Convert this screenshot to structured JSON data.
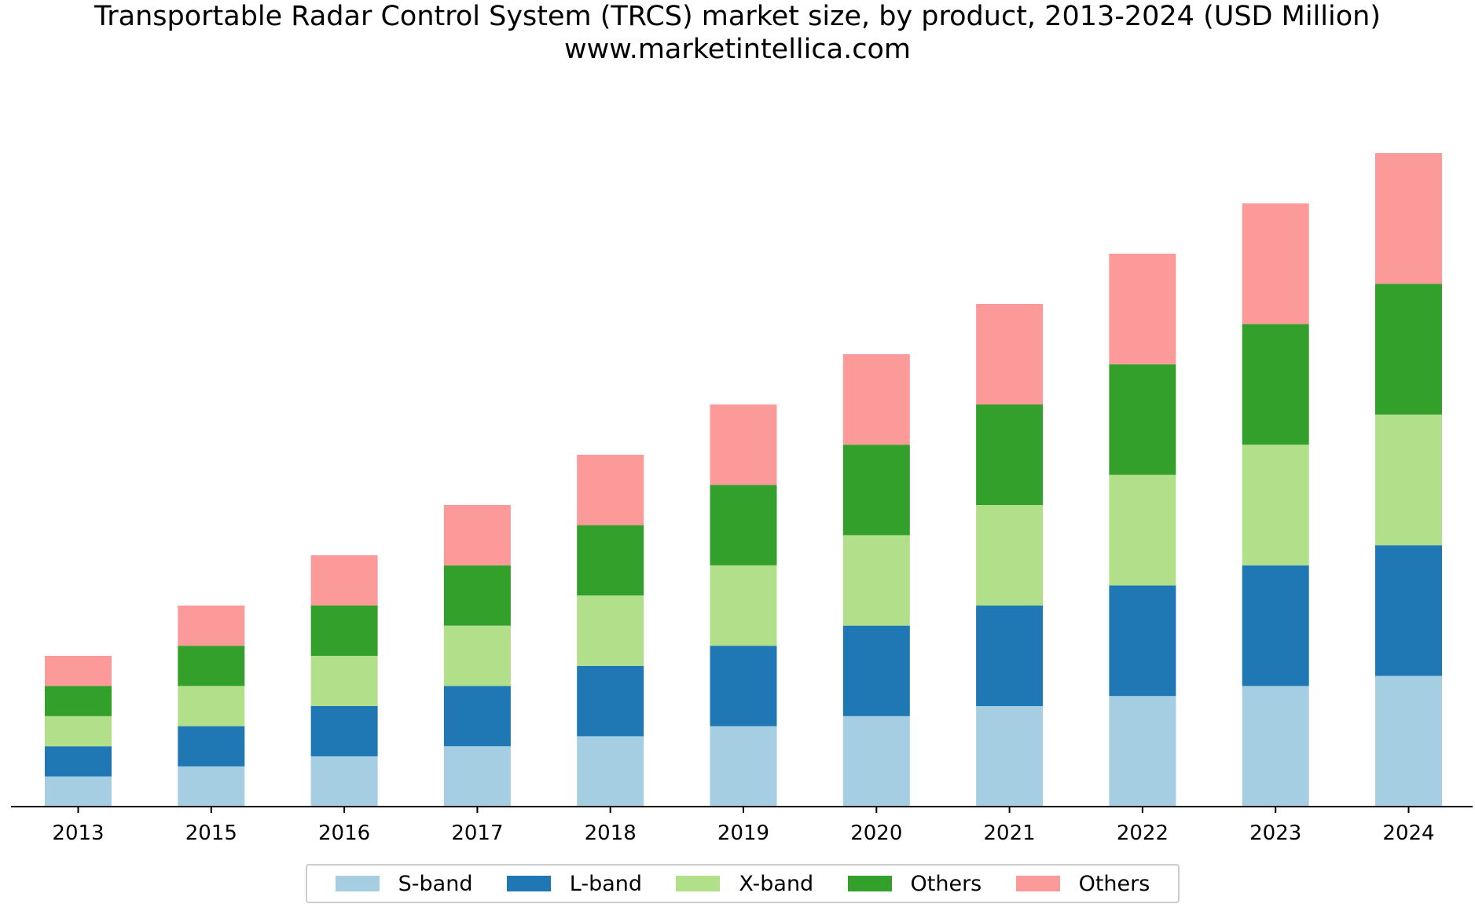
{
  "chart_data": {
    "type": "bar",
    "stacked": true,
    "title": "Transportable Radar Control System (TRCS) market size, by product, 2013-2024 (USD Million)",
    "subtitle": "www.marketintellica.com",
    "xlabel": "",
    "ylabel": "",
    "ylim": [
      0,
      13.5
    ],
    "grid": false,
    "legend_position": "bottom-center",
    "categories": [
      "2013",
      "2015",
      "2016",
      "2017",
      "2018",
      "2019",
      "2020",
      "2021",
      "2022",
      "2023",
      "2024"
    ],
    "series": [
      {
        "name": "S-band",
        "color": "#a6cee3",
        "values": [
          0.6,
          0.8,
          1.0,
          1.2,
          1.4,
          1.6,
          1.8,
          2.0,
          2.2,
          2.4,
          2.6
        ]
      },
      {
        "name": "L-band",
        "color": "#1f78b4",
        "values": [
          0.6,
          0.8,
          1.0,
          1.2,
          1.4,
          1.6,
          1.8,
          2.0,
          2.2,
          2.4,
          2.6
        ]
      },
      {
        "name": "X-band",
        "color": "#b2df8a",
        "values": [
          0.6,
          0.8,
          1.0,
          1.2,
          1.4,
          1.6,
          1.8,
          2.0,
          2.2,
          2.4,
          2.6
        ]
      },
      {
        "name": "Others",
        "color": "#33a02c",
        "values": [
          0.6,
          0.8,
          1.0,
          1.2,
          1.4,
          1.6,
          1.8,
          2.0,
          2.2,
          2.4,
          2.6
        ]
      },
      {
        "name": "Others",
        "color": "#fb9a99",
        "values": [
          0.6,
          0.8,
          1.0,
          1.2,
          1.4,
          1.6,
          1.8,
          2.0,
          2.2,
          2.4,
          2.6
        ]
      }
    ]
  }
}
